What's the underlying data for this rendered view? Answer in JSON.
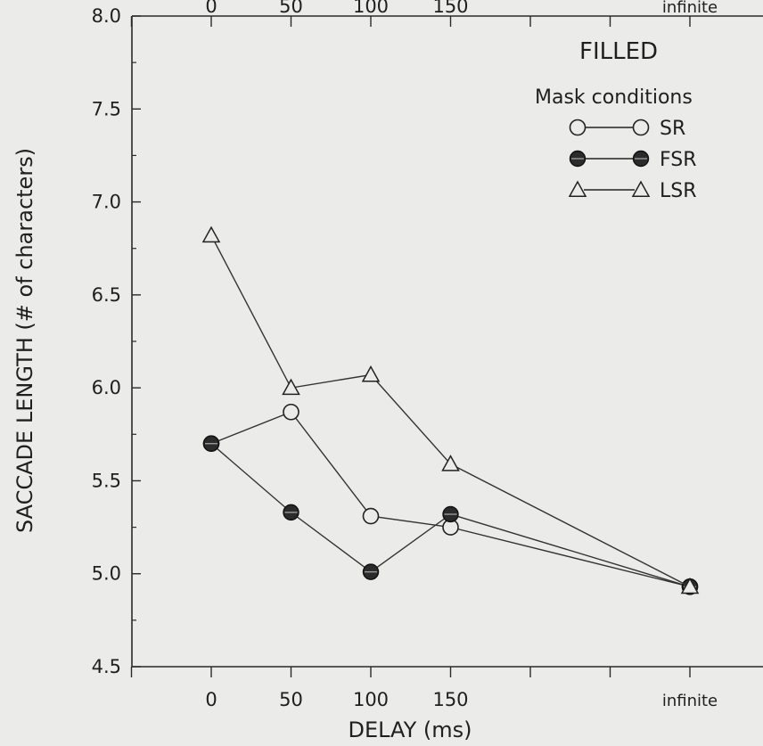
{
  "chart_data": {
    "type": "line",
    "title": "",
    "annotation": "FILLED",
    "xlabel": "DELAY (ms)",
    "ylabel": "SACCADE LENGTH (# of characters)",
    "x_tick_labels": [
      "0",
      "50",
      "100",
      "150",
      "infinite"
    ],
    "x_tick_positions": [
      0,
      1,
      2,
      3,
      6
    ],
    "x_extra_ticks": [
      -1,
      4,
      5
    ],
    "ylim": [
      4.5,
      8.0
    ],
    "y_ticks": [
      "4.5",
      "5.0",
      "5.5",
      "6.0",
      "6.5",
      "7.0",
      "7.5",
      "8.0"
    ],
    "grid": false,
    "legend_title": "Mask conditions",
    "legend_position": "top-right",
    "series": [
      {
        "name": "SR",
        "marker": "open-circle",
        "x": [
          0,
          1,
          2,
          3,
          6
        ],
        "values": [
          5.7,
          5.87,
          5.31,
          5.25,
          4.93
        ]
      },
      {
        "name": "FSR",
        "marker": "filled-circle",
        "x": [
          0,
          1,
          2,
          3,
          6
        ],
        "values": [
          5.7,
          5.33,
          5.01,
          5.32,
          4.93
        ]
      },
      {
        "name": "LSR",
        "marker": "triangle",
        "x": [
          0,
          1,
          2,
          3,
          6
        ],
        "values": [
          6.82,
          6.0,
          6.07,
          5.59,
          4.93
        ]
      }
    ]
  }
}
